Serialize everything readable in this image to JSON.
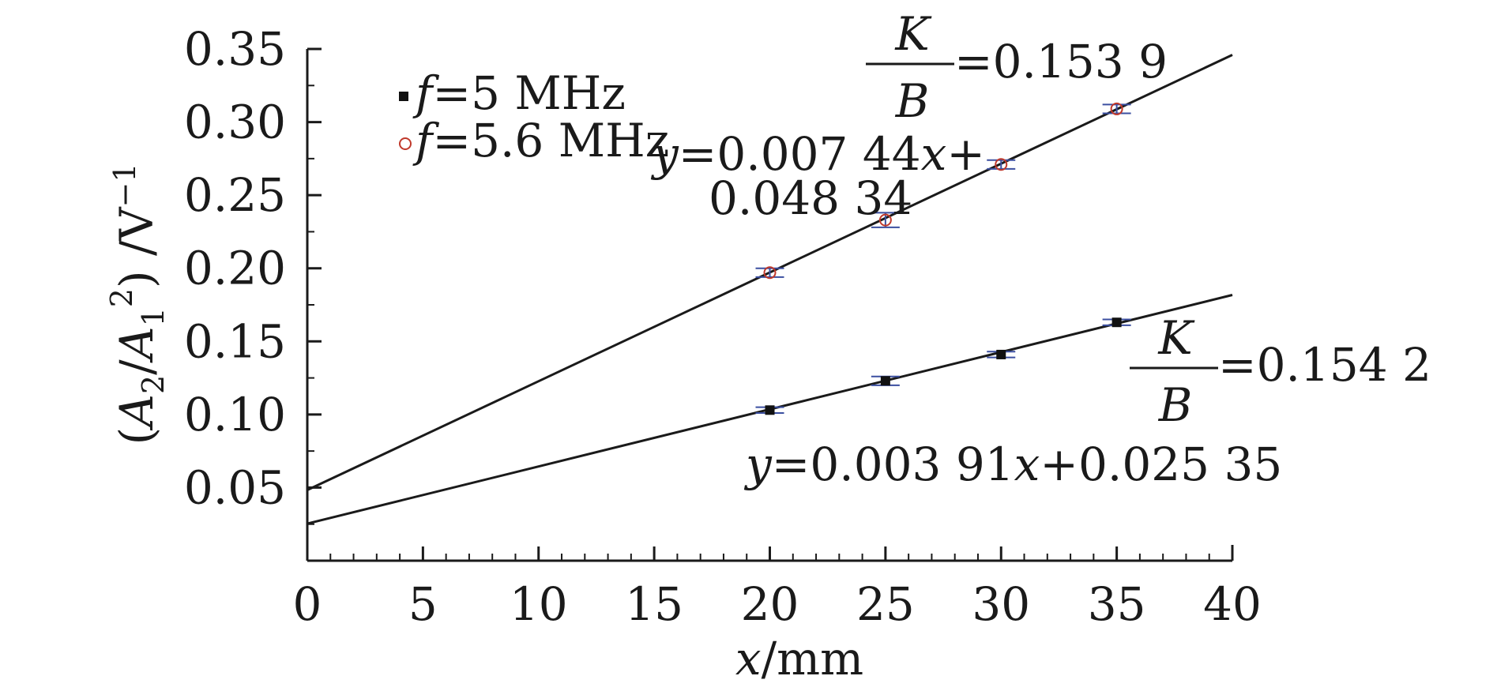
{
  "chart_data": {
    "type": "scatter",
    "xlabel": "x/mm",
    "ylabel": "(A2/A1²)/V⁻¹",
    "xlim": [
      0,
      40
    ],
    "ylim": [
      0,
      0.35
    ],
    "x_ticks": [
      "0",
      "5",
      "10",
      "15",
      "20",
      "25",
      "30",
      "35",
      "40"
    ],
    "y_ticks": [
      "0.05",
      "0.10",
      "0.15",
      "0.20",
      "0.25",
      "0.30",
      "0.35"
    ],
    "grid": false,
    "legend_position": "top-left",
    "series": [
      {
        "name": "f=5 MHz",
        "marker": "square",
        "color": "#111111",
        "x": [
          20,
          25,
          30,
          35
        ],
        "y": [
          0.103,
          0.123,
          0.141,
          0.163
        ],
        "error": [
          0.002,
          0.003,
          0.002,
          0.002
        ],
        "fit": {
          "slope": 0.00391,
          "intercept": 0.02535
        },
        "equation": "y=0.003 91x+0.025 35",
        "ratio_value": "=0.154 2"
      },
      {
        "name": "f=5.6 MHz",
        "marker": "open-circle",
        "color": "#c0392b",
        "x": [
          20,
          25,
          30,
          35
        ],
        "y": [
          0.197,
          0.233,
          0.271,
          0.309
        ],
        "error": [
          0.003,
          0.005,
          0.003,
          0.003
        ],
        "fit": {
          "slope": 0.00744,
          "intercept": 0.04834
        },
        "equation_line1": "y=0.007 44x+",
        "equation_line2": "0.048 34",
        "ratio_value": "=0.153 9"
      }
    ],
    "ratio_label": {
      "numerator": "K",
      "denominator": "B"
    },
    "error_bar_color": "#3b4fa0"
  }
}
